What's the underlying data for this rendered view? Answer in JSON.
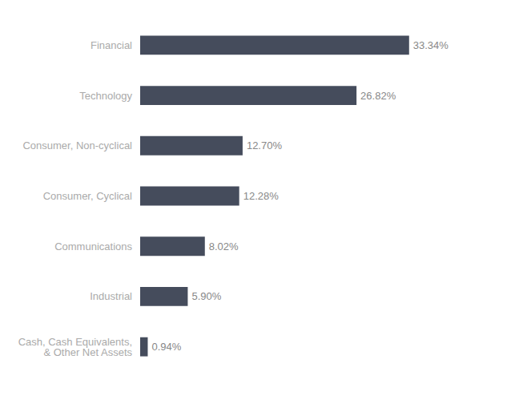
{
  "chart_data": {
    "type": "bar",
    "orientation": "horizontal",
    "categories": [
      "Cash, Cash Equivalents,\n& Other Net Assets",
      "Industrial",
      "Communications",
      "Consumer, Cyclical",
      "Consumer, Non-cyclical",
      "Technology",
      "Financial"
    ],
    "values": [
      0.94,
      5.9,
      8.02,
      12.28,
      12.7,
      26.82,
      33.34
    ],
    "value_labels": [
      "0.94%",
      "5.90%",
      "8.02%",
      "12.28%",
      "12.70%",
      "26.82%",
      "33.34%"
    ],
    "color": "#454c5c",
    "xlim": [
      0,
      42
    ],
    "data_labels": true,
    "tick_labels": "y",
    "grid": false
  }
}
